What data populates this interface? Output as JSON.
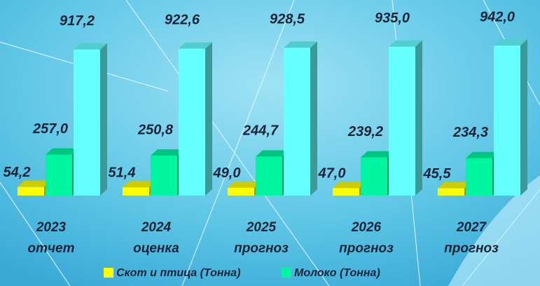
{
  "chart_data": {
    "type": "bar3d",
    "categories": [
      [
        "2023",
        "отчет"
      ],
      [
        "2024",
        "оценка"
      ],
      [
        "2025",
        "прогноз"
      ],
      [
        "2026",
        "прогноз"
      ],
      [
        "2027",
        "прогноз"
      ]
    ],
    "series": [
      {
        "name": "Скот и птица (Тонна)",
        "color": "#ffff00",
        "values": [
          54.2,
          51.4,
          49.0,
          47.0,
          45.5
        ],
        "value_labels": [
          "54,2",
          "51,4",
          "49,0",
          "47,0",
          "45,5"
        ]
      },
      {
        "name": "Молоко (Тонна)",
        "color": "#00f5a0",
        "values": [
          257.0,
          250.8,
          244.7,
          239.2,
          234.3
        ],
        "value_labels": [
          "257,0",
          "250,8",
          "244,7",
          "239,2",
          "234,3"
        ]
      },
      {
        "color": "#66ffff",
        "values": [
          917.2,
          922.6,
          928.5,
          935.0,
          942.0
        ],
        "value_labels": [
          "917,2",
          "922,6",
          "928,5",
          "935,0",
          "942,0"
        ]
      }
    ]
  }
}
